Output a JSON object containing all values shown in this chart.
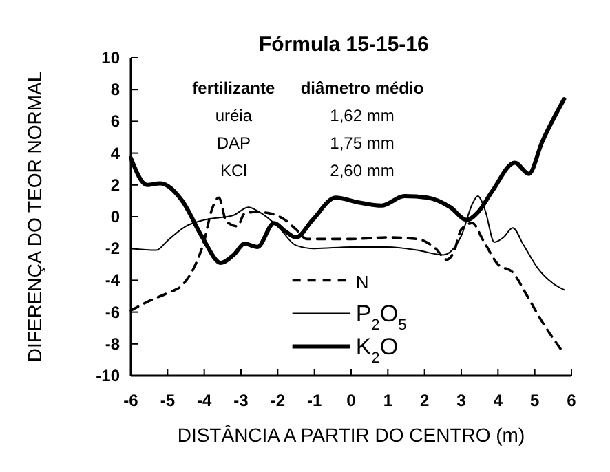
{
  "chart_data": {
    "type": "line",
    "title": "Fórmula 15-15-16",
    "xlabel": "DISTÂNCIA A PARTIR DO CENTRO (m)",
    "ylabel": "DIFERENÇA DO TEOR NORMAL",
    "annotations": [
      "fertilizante",
      "diâmetro médio",
      "uréia",
      "1,62 mm",
      "DAP",
      "1,75 mm",
      "KCl",
      "2,60 mm"
    ],
    "xlim": [
      -6,
      6
    ],
    "xticks": [
      -6,
      -5,
      -4,
      -3,
      -2,
      -1,
      0,
      1,
      2,
      3,
      4,
      5,
      6
    ],
    "ylim": [
      -10,
      10
    ],
    "yticks": [
      -10,
      -8,
      -6,
      -4,
      -2,
      0,
      2,
      4,
      6,
      8,
      10
    ],
    "grid": false,
    "legend": "bottom",
    "series": [
      {
        "name": "N",
        "color": "#000000",
        "line_style": "dashed",
        "x": [
          -6,
          -5.5,
          -5,
          -4.6,
          -4.3,
          -4,
          -3.8,
          -3.6,
          -3.4,
          -3.1,
          -2.9,
          -2.6,
          -2.2,
          -1.8,
          -1.5,
          -1.2,
          0,
          1,
          1.8,
          2.3,
          2.6,
          2.8,
          3,
          3.3,
          3.6,
          4,
          4.4,
          4.8,
          5.2,
          5.7
        ],
        "values": [
          -5.9,
          -5.3,
          -4.8,
          -4.3,
          -3.3,
          -1.5,
          0.4,
          1.2,
          -0.3,
          -0.6,
          0.2,
          0.3,
          0.2,
          -0.2,
          -0.8,
          -1.4,
          -1.4,
          -1.3,
          -1.4,
          -2,
          -2.7,
          -2.2,
          -0.8,
          -0.4,
          -1.5,
          -3,
          -3.5,
          -5,
          -6.6,
          -8.3
        ]
      },
      {
        "name": "P$_{2}$O$_{5}$",
        "color": "#000000",
        "line_style": "solid",
        "x": [
          -6,
          -5.3,
          -5,
          -4.5,
          -4,
          -3.2,
          -2.8,
          -2.5,
          -2,
          -1.5,
          -1,
          0,
          1,
          1.8,
          2.5,
          3,
          3.3,
          3.45,
          3.65,
          3.9,
          4.15,
          4.4,
          4.7,
          5.1,
          5.5,
          5.8
        ],
        "values": [
          -2,
          -2.1,
          -1.5,
          -0.6,
          -0.2,
          0.1,
          0.6,
          0.3,
          -0.6,
          -1.8,
          -2,
          -1.9,
          -1.9,
          -2.1,
          -2.4,
          -1.2,
          0.8,
          1.3,
          0.4,
          -1.6,
          -1.3,
          -0.7,
          -1.8,
          -3.3,
          -4.2,
          -4.6
        ]
      },
      {
        "name": "K$_{2}$O",
        "color": "#000000",
        "line_style": "solid",
        "x": [
          -6,
          -5.56,
          -5.2,
          -4.6,
          -4.05,
          -3.55,
          -3.2,
          -2.9,
          -2.55,
          -2.1,
          -1.8,
          -1.5,
          -1.05,
          -0.42,
          0.2,
          0.83,
          1.45,
          2.08,
          2.7,
          3.15,
          3.46,
          3.84,
          4.46,
          4.84,
          5.2,
          5.8
        ],
        "values": [
          3.7,
          2,
          2.1,
          1,
          -1.3,
          -2.9,
          -2.4,
          -1.7,
          -1.9,
          -0.4,
          -0.9,
          -1.3,
          -0.2,
          1.2,
          0.9,
          0.7,
          1.3,
          1.2,
          0.6,
          -0.2,
          0.3,
          1.6,
          3.4,
          2.7,
          4.7,
          7.4
        ]
      }
    ]
  }
}
